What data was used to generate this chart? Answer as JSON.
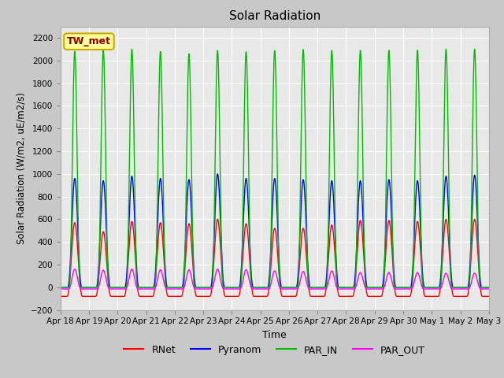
{
  "title": "Solar Radiation",
  "ylabel": "Solar Radiation (W/m2, uE/m2/s)",
  "xlabel": "Time",
  "ylim": [
    -200,
    2300
  ],
  "yticks": [
    -200,
    0,
    200,
    400,
    600,
    800,
    1000,
    1200,
    1400,
    1600,
    1800,
    2000,
    2200
  ],
  "fig_facecolor": "#c8c8c8",
  "axes_facecolor": "#e8e8e8",
  "grid_color": "white",
  "station_label": "TW_met",
  "station_label_color": "#8B0000",
  "station_box_facecolor": "#FFFF99",
  "station_box_edgecolor": "#CCAA00",
  "n_days": 15,
  "series_colors": {
    "RNet": "#ff0000",
    "Pyranom": "#0000ff",
    "PAR_IN": "#00bb00",
    "PAR_OUT": "#ff00ff"
  },
  "peaks": {
    "RNet": [
      570,
      490,
      580,
      570,
      560,
      600,
      560,
      520,
      520,
      550,
      590,
      590,
      580,
      600,
      600
    ],
    "Pyranom": [
      960,
      940,
      980,
      960,
      950,
      1000,
      960,
      960,
      950,
      940,
      940,
      950,
      940,
      980,
      990
    ],
    "PAR_IN": [
      2080,
      2090,
      2100,
      2080,
      2060,
      2090,
      2080,
      2090,
      2100,
      2090,
      2090,
      2090,
      2090,
      2100,
      2100
    ],
    "PAR_OUT": [
      160,
      150,
      160,
      155,
      155,
      160,
      155,
      145,
      140,
      145,
      130,
      130,
      130,
      125,
      125
    ]
  },
  "night_min": {
    "RNet": -80,
    "Pyranom": 0,
    "PAR_IN": 0,
    "PAR_OUT": -15
  },
  "day_width": {
    "RNet": 0.22,
    "Pyranom": 0.2,
    "PAR_IN": 0.16,
    "PAR_OUT": 0.18
  },
  "lw": 1.0,
  "xtick_labels": [
    "Apr 18",
    "Apr 19",
    "Apr 20",
    "Apr 21",
    "Apr 22",
    "Apr 23",
    "Apr 24",
    "Apr 25",
    "Apr 26",
    "Apr 27",
    "Apr 28",
    "Apr 29",
    "Apr 30",
    "May 1",
    "May 2",
    "May 3"
  ]
}
